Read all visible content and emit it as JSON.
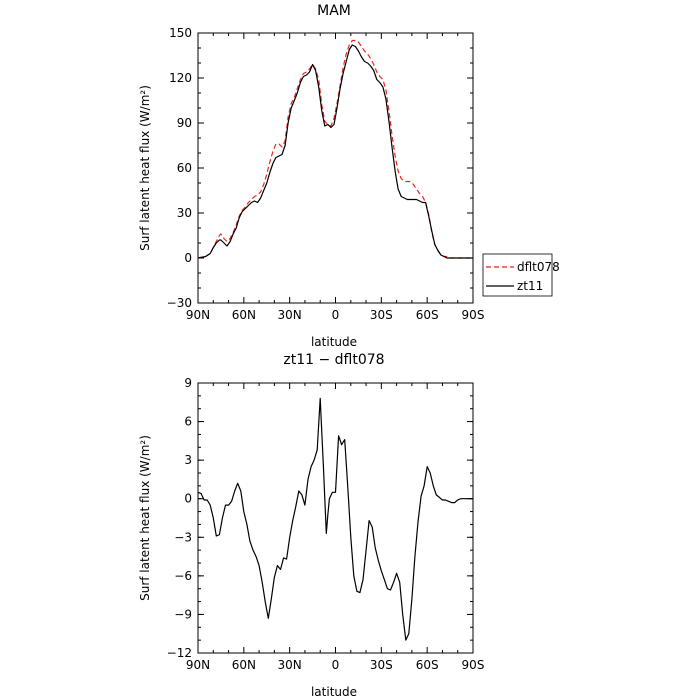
{
  "chart_data": [
    {
      "type": "line",
      "title": "MAM",
      "xlabel": "latitude",
      "ylabel": "Surf latent heat flux (W/m²)",
      "xlim": [
        90,
        -90
      ],
      "ylim": [
        -30,
        150
      ],
      "x_ticks": [
        90,
        60,
        30,
        0,
        -30,
        -60,
        -90
      ],
      "x_tick_labels": [
        "90N",
        "60N",
        "30N",
        "0",
        "30S",
        "60S",
        "90S"
      ],
      "y_ticks": [
        -30,
        0,
        30,
        60,
        90,
        120,
        150
      ],
      "y_tick_labels": [
        "−30",
        "0",
        "30",
        "60",
        "90",
        "120",
        "150"
      ],
      "legend": "right",
      "series": [
        {
          "name": "dflt078",
          "color": "#e8261c",
          "dash": "dashed",
          "x": [
            90,
            85,
            82,
            80,
            78,
            76,
            75,
            73,
            71,
            69,
            67,
            65,
            63,
            61,
            59,
            57,
            55,
            53,
            51,
            49,
            47,
            45,
            43,
            41,
            39,
            37,
            35,
            33,
            31,
            29,
            27,
            25,
            23,
            21,
            19,
            17,
            15,
            13,
            11,
            9,
            7,
            5,
            3,
            1,
            -1,
            -3,
            -5,
            -7,
            -9,
            -11,
            -13,
            -15,
            -17,
            -19,
            -21,
            -23,
            -25,
            -27,
            -29,
            -31,
            -33,
            -35,
            -37,
            -39,
            -41,
            -43,
            -45,
            -47,
            -49,
            -51,
            -53,
            -55,
            -57,
            -59,
            -61,
            -63,
            -65,
            -67,
            -69,
            -71,
            -73,
            -75,
            -77,
            -79,
            -81,
            -85,
            -90
          ],
          "y": [
            0,
            1,
            3,
            7,
            11,
            15,
            16,
            13,
            11,
            13,
            17,
            22,
            28,
            32,
            34,
            37,
            39,
            41,
            42,
            44,
            49,
            56,
            64,
            71,
            76,
            76,
            74,
            78,
            94,
            103,
            107,
            113,
            119,
            123,
            124,
            126,
            129,
            126,
            119,
            102,
            91,
            89,
            88,
            93,
            103,
            115,
            127,
            136,
            142,
            145,
            145,
            144,
            141,
            138,
            136,
            133,
            129,
            124,
            121,
            119,
            112,
            98,
            82,
            68,
            58,
            53,
            51,
            51,
            51,
            49,
            46,
            43,
            41,
            37,
            29,
            17,
            9,
            5,
            2,
            1,
            1,
            0,
            0,
            0,
            0,
            0,
            0
          ]
        },
        {
          "name": "zt11",
          "color": "#000000",
          "dash": "solid",
          "x": [
            90,
            85,
            82,
            80,
            78,
            76,
            75,
            73,
            71,
            69,
            67,
            65,
            63,
            61,
            59,
            57,
            55,
            53,
            51,
            49,
            47,
            45,
            43,
            41,
            39,
            37,
            35,
            33,
            31,
            29,
            27,
            25,
            23,
            21,
            19,
            17,
            15,
            13,
            11,
            9,
            7,
            5,
            3,
            1,
            -1,
            -3,
            -5,
            -7,
            -9,
            -11,
            -13,
            -15,
            -17,
            -19,
            -21,
            -23,
            -25,
            -27,
            -29,
            -31,
            -33,
            -35,
            -37,
            -39,
            -41,
            -43,
            -45,
            -47,
            -49,
            -51,
            -53,
            -55,
            -57,
            -59,
            -61,
            -63,
            -65,
            -67,
            -69,
            -71,
            -73,
            -75,
            -77,
            -79,
            -81,
            -85,
            -90
          ],
          "y": [
            0,
            1,
            3,
            7,
            10,
            12,
            12,
            10,
            8,
            11,
            16,
            20,
            27,
            31,
            33,
            35,
            37,
            38,
            37,
            40,
            45,
            50,
            57,
            63,
            67,
            68,
            69,
            75,
            90,
            100,
            105,
            110,
            117,
            121,
            122,
            124,
            129,
            125,
            114,
            98,
            88,
            89,
            87,
            89,
            100,
            113,
            123,
            131,
            139,
            142,
            141,
            138,
            134,
            131,
            130,
            128,
            125,
            119,
            117,
            114,
            106,
            91,
            74,
            58,
            46,
            41,
            40,
            39,
            39,
            39,
            39,
            38,
            37,
            37,
            28,
            18,
            9,
            5,
            2,
            1,
            0,
            0,
            0,
            0,
            0,
            0,
            0
          ]
        }
      ]
    },
    {
      "type": "line",
      "title": "zt11 − dflt078",
      "xlabel": "latitude",
      "ylabel": "Surf latent heat flux (W/m²)",
      "xlim": [
        90,
        -90
      ],
      "ylim": [
        -12,
        9
      ],
      "x_ticks": [
        90,
        60,
        30,
        0,
        -30,
        -60,
        -90
      ],
      "x_tick_labels": [
        "90N",
        "60N",
        "30N",
        "0",
        "30S",
        "60S",
        "90S"
      ],
      "y_ticks": [
        -12,
        -9,
        -6,
        -3,
        0,
        3,
        6,
        9
      ],
      "y_tick_labels": [
        "−12",
        "−9",
        "−6",
        "−3",
        "0",
        "3",
        "6",
        "9"
      ],
      "series": [
        {
          "name": "",
          "color": "#000000",
          "dash": "solid",
          "x": [
            90,
            88,
            86,
            84,
            82,
            80,
            78,
            76,
            74,
            72,
            70,
            68,
            66,
            64,
            62,
            60,
            58,
            56,
            54,
            52,
            50,
            48,
            46,
            44,
            42,
            40,
            38,
            36,
            34,
            32,
            30,
            28,
            26,
            24,
            22,
            20,
            18,
            16,
            14,
            12,
            10,
            8,
            6,
            5,
            4,
            2,
            0,
            -2,
            -4,
            -6,
            -8,
            -10,
            -12,
            -14,
            -16,
            -18,
            -20,
            -22,
            -24,
            -26,
            -28,
            -30,
            -32,
            -34,
            -36,
            -38,
            -40,
            -42,
            -44,
            -46,
            -48,
            -50,
            -52,
            -54,
            -56,
            -58,
            -60,
            -62,
            -64,
            -66,
            -68,
            -70,
            -72,
            -74,
            -76,
            -78,
            -80,
            -82,
            -84,
            -87,
            -90
          ],
          "y": [
            0.5,
            0.4,
            -0.1,
            -0.1,
            -0.5,
            -1.5,
            -2.9,
            -2.8,
            -1.5,
            -0.5,
            -0.5,
            -0.2,
            0.6,
            1.2,
            0.6,
            -1.0,
            -2.0,
            -3.3,
            -4.0,
            -4.5,
            -5.2,
            -6.5,
            -8.0,
            -9.3,
            -7.8,
            -6.1,
            -5.2,
            -5.5,
            -4.6,
            -4.7,
            -3.0,
            -1.7,
            -0.6,
            0.6,
            0.3,
            -0.5,
            1.5,
            2.5,
            3.0,
            3.8,
            7.8,
            2.7,
            -2.7,
            -1.2,
            0.0,
            0.5,
            0.5,
            4.9,
            4.2,
            4.6,
            1.0,
            -3.0,
            -6.0,
            -7.2,
            -7.3,
            -6.3,
            -4.0,
            -1.7,
            -2.2,
            -3.8,
            -4.8,
            -5.6,
            -6.3,
            -7.0,
            -7.1,
            -6.5,
            -5.8,
            -6.5,
            -9.0,
            -11.0,
            -10.5,
            -7.8,
            -4.5,
            -1.8,
            0.2,
            1.0,
            2.5,
            2.0,
            1.0,
            0.3,
            0.1,
            -0.1,
            -0.1,
            -0.2,
            -0.3,
            -0.3,
            -0.1,
            0.0,
            0.0,
            0.0,
            0.0
          ]
        }
      ]
    }
  ]
}
